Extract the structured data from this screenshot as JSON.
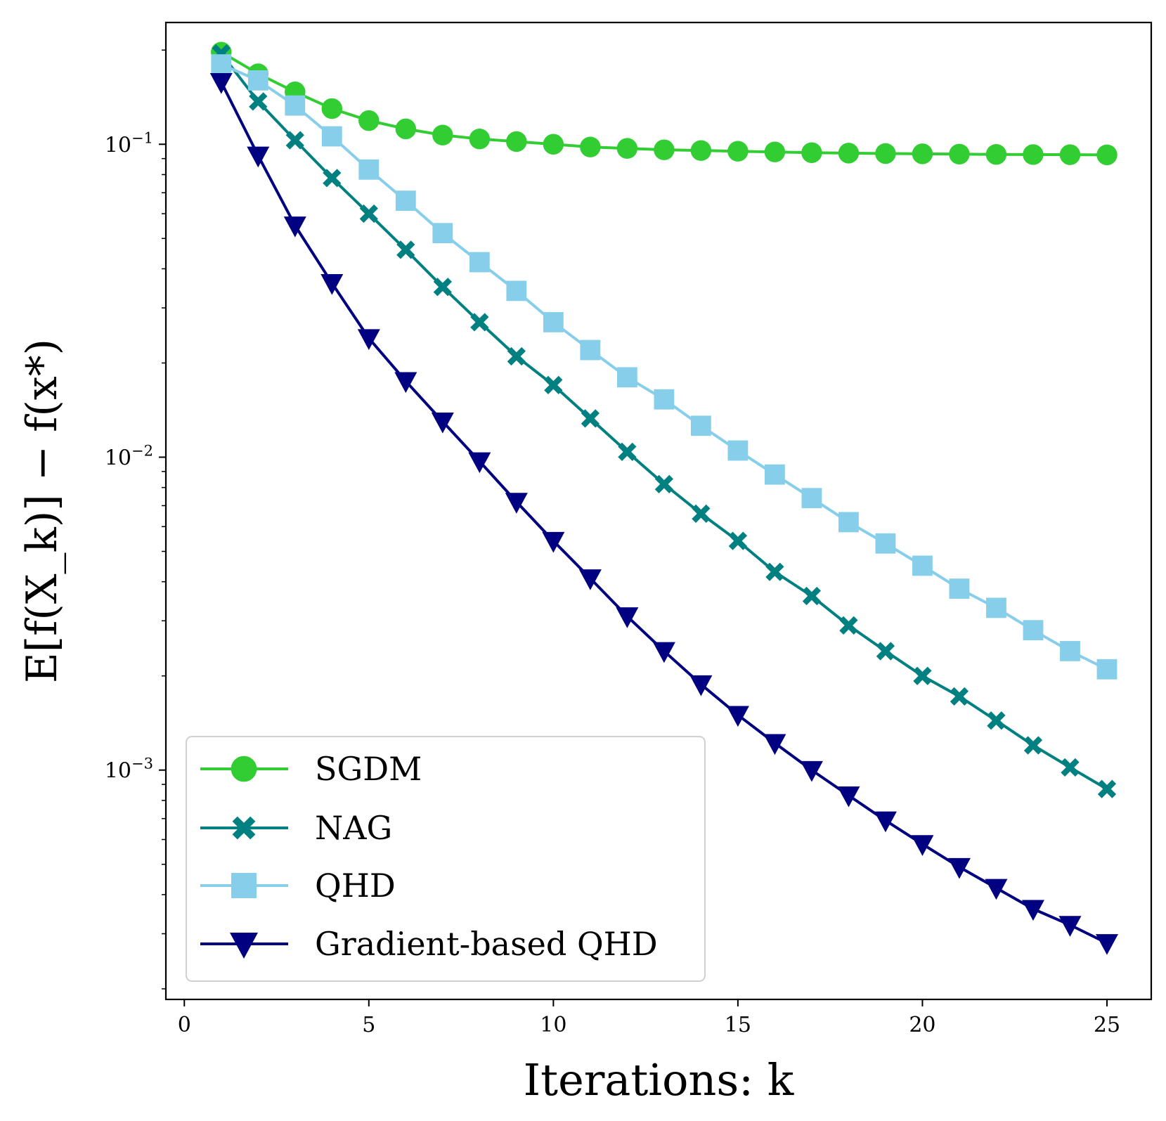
{
  "chart_data": {
    "type": "line",
    "title": "",
    "xlabel": "Iterations: k",
    "ylabel": "E[f(X_k)] − f(x*)",
    "yscale": "log",
    "xlim": [
      -0.5,
      26.2
    ],
    "ylim": [
      0.000185,
      0.245
    ],
    "xticks": [
      0,
      5,
      10,
      15,
      20,
      25
    ],
    "xtick_labels": [
      "0",
      "5",
      "10",
      "15",
      "20",
      "25"
    ],
    "yticks": [
      0.1,
      0.01,
      0.001
    ],
    "ytick_labels": [
      "10−1",
      "10−2",
      "10−3"
    ],
    "ytick_parts": [
      {
        "base": "10",
        "exp": "−1"
      },
      {
        "base": "10",
        "exp": "−2"
      },
      {
        "base": "10",
        "exp": "−3"
      }
    ],
    "grid": false,
    "legend_position": "lower-left",
    "x": [
      1,
      2,
      3,
      4,
      5,
      6,
      7,
      8,
      9,
      10,
      11,
      12,
      13,
      14,
      15,
      16,
      17,
      18,
      19,
      20,
      21,
      22,
      23,
      24,
      25
    ],
    "series": [
      {
        "name": "SGDM",
        "color": "#32cd32",
        "marker": "circle",
        "values": [
          0.197,
          0.168,
          0.147,
          0.13,
          0.119,
          0.112,
          0.107,
          0.104,
          0.102,
          0.1,
          0.098,
          0.097,
          0.096,
          0.0955,
          0.095,
          0.0945,
          0.094,
          0.0937,
          0.0934,
          0.0932,
          0.093,
          0.0928,
          0.0927,
          0.0926,
          0.0925
        ]
      },
      {
        "name": "NAG",
        "color": "#008080",
        "marker": "x",
        "values": [
          0.195,
          0.137,
          0.103,
          0.078,
          0.06,
          0.046,
          0.035,
          0.027,
          0.021,
          0.017,
          0.0133,
          0.0104,
          0.0082,
          0.0066,
          0.0054,
          0.0043,
          0.0036,
          0.0029,
          0.0024,
          0.002,
          0.00172,
          0.00144,
          0.0012,
          0.00102,
          0.00087
        ]
      },
      {
        "name": "QHD",
        "color": "#87ceeb",
        "marker": "square",
        "values": [
          0.18,
          0.16,
          0.133,
          0.106,
          0.083,
          0.066,
          0.052,
          0.042,
          0.034,
          0.027,
          0.022,
          0.018,
          0.0153,
          0.0126,
          0.0105,
          0.0088,
          0.0074,
          0.0062,
          0.0053,
          0.0045,
          0.0038,
          0.0033,
          0.0028,
          0.0024,
          0.0021
        ]
      },
      {
        "name": "Gradient-based QHD",
        "color": "#000080",
        "marker": "triangle-down",
        "values": [
          0.158,
          0.092,
          0.055,
          0.036,
          0.024,
          0.0175,
          0.013,
          0.0097,
          0.0072,
          0.0054,
          0.0041,
          0.0031,
          0.0024,
          0.00188,
          0.0015,
          0.00122,
          0.001,
          0.00083,
          0.00069,
          0.00058,
          0.00049,
          0.00042,
          0.00036,
          0.00032,
          0.00028
        ]
      }
    ]
  }
}
